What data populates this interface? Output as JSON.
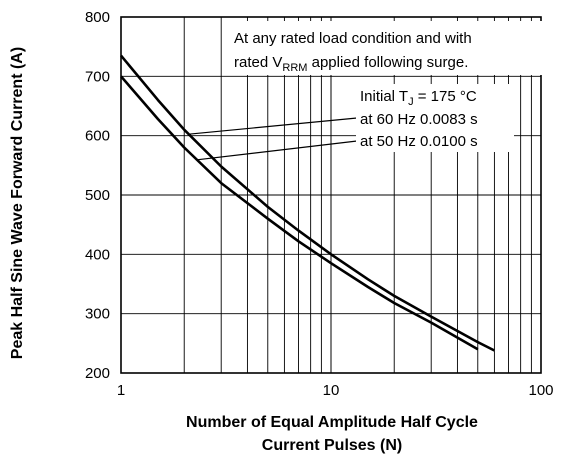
{
  "chart_data": {
    "type": "line",
    "xscale": "log",
    "xlim": [
      1,
      100
    ],
    "ylim": [
      200,
      800
    ],
    "grid": true,
    "xlabel_lines": [
      "Number of Equal Amplitude Half Cycle",
      "Current Pulses (N)"
    ],
    "ylabel": "Peak Half Sine Wave Forward Current (A)",
    "x_ticks": [
      {
        "value": 1,
        "label": "1"
      },
      {
        "value": 10,
        "label": "10"
      },
      {
        "value": 100,
        "label": "100"
      }
    ],
    "y_ticks": [
      {
        "value": 200,
        "label": "200"
      },
      {
        "value": 300,
        "label": "300"
      },
      {
        "value": 400,
        "label": "400"
      },
      {
        "value": 500,
        "label": "500"
      },
      {
        "value": 600,
        "label": "600"
      },
      {
        "value": 700,
        "label": "700"
      },
      {
        "value": 800,
        "label": "800"
      }
    ],
    "series": [
      {
        "label": "at 60 Hz 0.0083 s",
        "x": [
          1,
          1.5,
          2,
          3,
          5,
          7,
          10,
          15,
          20,
          30,
          50,
          60
        ],
        "y": [
          735,
          660,
          610,
          548,
          480,
          440,
          400,
          358,
          330,
          295,
          252,
          238
        ]
      },
      {
        "label": "at 50 Hz 0.0100 s",
        "x": [
          1,
          1.5,
          2,
          3,
          5,
          7,
          10,
          15,
          20,
          30,
          50
        ],
        "y": [
          700,
          628,
          580,
          520,
          460,
          422,
          385,
          345,
          318,
          285,
          240
        ]
      }
    ],
    "annotations": {
      "condition_line1": "At any rated load condition and with",
      "condition_line2_pre": "rated V",
      "condition_line2_sub": "RRM",
      "condition_line2_post": " applied following surge.",
      "initial_pre": "Initial T",
      "initial_sub": "J",
      "initial_post": " = 175 °C"
    }
  }
}
